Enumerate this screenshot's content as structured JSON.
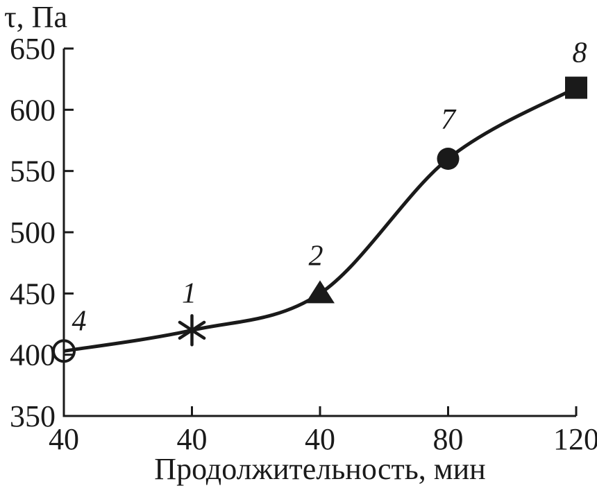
{
  "chart_data": {
    "type": "line",
    "title": "",
    "ylabel": "τ, Па",
    "xlabel": "Продолжительность, мин",
    "ylim": [
      350,
      650
    ],
    "yticks": [
      650,
      600,
      550,
      500,
      450,
      400,
      350
    ],
    "xtick_labels": [
      "40",
      "40",
      "40",
      "80",
      "120"
    ],
    "grid": false,
    "legend": "none",
    "series": [
      {
        "name": "shear-stress-vs-duration",
        "color": "#1a1a1a",
        "points": [
          {
            "x_tick": 0,
            "x_label": "40",
            "value": 403,
            "marker": "open-circle",
            "label": "4",
            "label_dx": 22,
            "label_dy": -44
          },
          {
            "x_tick": 1,
            "x_label": "40",
            "value": 420,
            "marker": "asterisk",
            "label": "1",
            "label_dx": -4,
            "label_dy": -54
          },
          {
            "x_tick": 2,
            "x_label": "40",
            "value": 450,
            "marker": "triangle-filled",
            "label": "2",
            "label_dx": -6,
            "label_dy": -55
          },
          {
            "x_tick": 3,
            "x_label": "80",
            "value": 560,
            "marker": "circle-filled",
            "label": "7",
            "label_dx": 0,
            "label_dy": -57
          },
          {
            "x_tick": 4,
            "x_label": "120",
            "value": 618,
            "marker": "square-filled",
            "label": "8",
            "label_dx": 5,
            "label_dy": -51
          }
        ]
      }
    ]
  },
  "colors": {
    "ink": "#1a1a1a",
    "background": "#ffffff"
  }
}
